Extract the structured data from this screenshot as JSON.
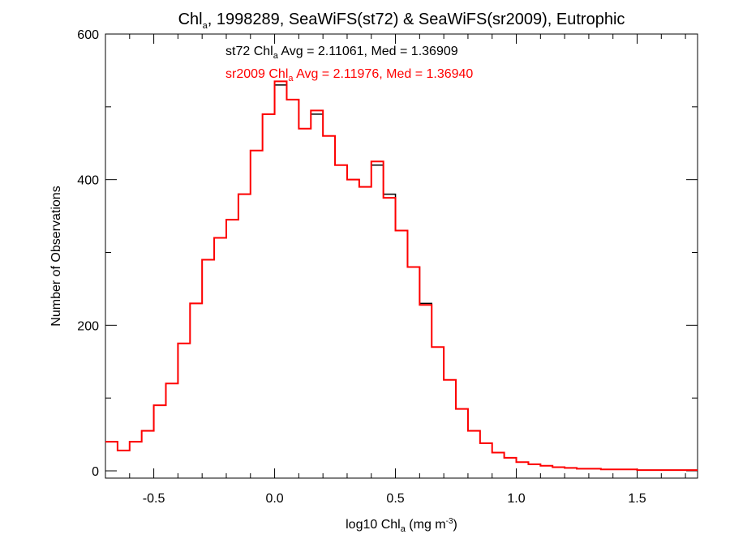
{
  "title": {
    "prefix": "Chl",
    "sub": "a",
    "suffix": ", 1998289, SeaWiFS(st72) & SeaWiFS(sr2009), Eutrophic"
  },
  "stats": {
    "st72": {
      "prefix": "st72 Chl",
      "sub": "a",
      "suffix": " Avg = 2.11061, Med = 1.36909",
      "color": "#000000"
    },
    "sr2009": {
      "prefix": "sr2009 Chl",
      "sub": "a",
      "suffix": " Avg = 2.11976, Med = 1.36940",
      "color": "#ff0000"
    }
  },
  "axes": {
    "xlabel_prefix": "log10 Chl",
    "xlabel_sub": "a",
    "xlabel_mid": " (mg m",
    "xlabel_sup": "-3",
    "xlabel_end": ")",
    "ylabel": "Number of Observations"
  },
  "chart_data": {
    "type": "line",
    "step": true,
    "xlim": [
      -0.7,
      1.75
    ],
    "ylim": [
      -10,
      600
    ],
    "x_ticks": [
      -0.5,
      0.0,
      0.5,
      1.0,
      1.5
    ],
    "x_tick_labels": [
      "-0.5",
      "0.0",
      "0.5",
      "1.0",
      "1.5"
    ],
    "y_ticks": [
      0,
      200,
      400,
      600
    ],
    "y_tick_labels": [
      "0",
      "200",
      "400",
      "600"
    ],
    "grid": false,
    "x": [
      -0.7,
      -0.65,
      -0.6,
      -0.55,
      -0.5,
      -0.45,
      -0.4,
      -0.35,
      -0.3,
      -0.25,
      -0.2,
      -0.15,
      -0.1,
      -0.05,
      0.0,
      0.05,
      0.1,
      0.15,
      0.2,
      0.25,
      0.3,
      0.35,
      0.4,
      0.45,
      0.5,
      0.55,
      0.6,
      0.65,
      0.7,
      0.75,
      0.8,
      0.85,
      0.9,
      0.95,
      1.0,
      1.05,
      1.1,
      1.15,
      1.2,
      1.25,
      1.3,
      1.35,
      1.4,
      1.45,
      1.5,
      1.55,
      1.6,
      1.65,
      1.7,
      1.75
    ],
    "series": [
      {
        "name": "st72",
        "color": "#000000",
        "values": [
          40,
          28,
          40,
          55,
          90,
          120,
          175,
          230,
          290,
          320,
          345,
          380,
          440,
          490,
          530,
          510,
          470,
          490,
          460,
          420,
          400,
          390,
          420,
          380,
          330,
          280,
          230,
          170,
          125,
          85,
          55,
          38,
          25,
          18,
          12,
          9,
          7,
          5,
          4,
          3,
          3,
          2,
          2,
          2,
          1,
          1,
          1,
          1,
          1,
          1
        ]
      },
      {
        "name": "sr2009",
        "color": "#ff0000",
        "values": [
          40,
          28,
          40,
          55,
          90,
          120,
          175,
          230,
          290,
          320,
          345,
          380,
          440,
          490,
          535,
          510,
          470,
          495,
          460,
          420,
          400,
          390,
          425,
          375,
          330,
          280,
          228,
          170,
          125,
          85,
          55,
          38,
          25,
          18,
          12,
          9,
          7,
          5,
          4,
          3,
          3,
          2,
          2,
          2,
          1,
          1,
          1,
          1,
          1,
          1
        ]
      }
    ]
  }
}
